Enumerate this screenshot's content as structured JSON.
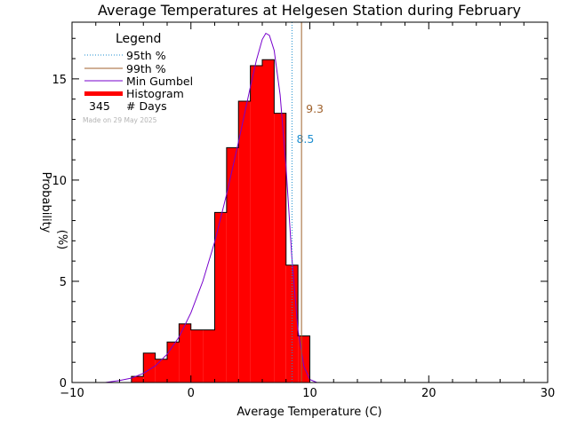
{
  "chart_data": {
    "type": "bar",
    "title": "Average Temperatures at Helgesen Station during February",
    "xlabel": "Average Temperature (C)",
    "ylabel_line1": "Probability",
    "ylabel_line2": "(%)",
    "xlim": [
      -10,
      30
    ],
    "ylim": [
      0,
      17.8
    ],
    "xticks": [
      -10,
      0,
      10,
      20,
      30
    ],
    "xtick_labels": [
      "−10",
      "0",
      "10",
      "20",
      "30"
    ],
    "yticks": [
      0,
      5,
      10,
      15
    ],
    "ytick_labels": [
      "0",
      "5",
      "10",
      "15"
    ],
    "grid": false,
    "legend": {
      "title": "Legend",
      "placement": "top-left",
      "entries": [
        {
          "label": "95th %",
          "style": "dotted",
          "color": "#1f8fd0"
        },
        {
          "label": "99th %",
          "style": "solid",
          "color": "#a0622d"
        },
        {
          "label": "Min Gumbel",
          "style": "solid",
          "color": "#7700cc"
        },
        {
          "label": "Histogram",
          "style": "thick",
          "color": "#ff0000"
        }
      ],
      "days_value": "345",
      "days_label": "# Days",
      "made_on": "Made on 29 May 2025"
    },
    "histogram": {
      "bin_width": 1,
      "bins": [
        {
          "x0": -5,
          "value": 0.3
        },
        {
          "x0": -4,
          "value": 1.45
        },
        {
          "x0": -3,
          "value": 1.15
        },
        {
          "x0": -2,
          "value": 2.0
        },
        {
          "x0": -1,
          "value": 2.9
        },
        {
          "x0": 0,
          "value": 2.6
        },
        {
          "x0": 1,
          "value": 2.6
        },
        {
          "x0": 2,
          "value": 8.4
        },
        {
          "x0": 3,
          "value": 11.6
        },
        {
          "x0": 4,
          "value": 13.9
        },
        {
          "x0": 5,
          "value": 15.65
        },
        {
          "x0": 6,
          "value": 15.95
        },
        {
          "x0": 7,
          "value": 13.3
        },
        {
          "x0": 8,
          "value": 5.8
        },
        {
          "x0": 9,
          "value": 2.3
        }
      ]
    },
    "gumbel_curve": [
      [
        -7.2,
        0.0
      ],
      [
        -6,
        0.1
      ],
      [
        -5,
        0.22
      ],
      [
        -4,
        0.45
      ],
      [
        -3,
        0.82
      ],
      [
        -2,
        1.4
      ],
      [
        -1,
        2.25
      ],
      [
        0,
        3.45
      ],
      [
        1,
        5.0
      ],
      [
        2,
        6.95
      ],
      [
        3,
        9.3
      ],
      [
        4,
        11.9
      ],
      [
        5,
        14.6
      ],
      [
        5.5,
        15.9
      ],
      [
        6,
        16.95
      ],
      [
        6.3,
        17.25
      ],
      [
        6.6,
        17.15
      ],
      [
        7,
        16.4
      ],
      [
        7.5,
        14.2
      ],
      [
        8,
        10.6
      ],
      [
        8.5,
        6.1
      ],
      [
        9,
        2.6
      ],
      [
        9.5,
        0.8
      ],
      [
        10,
        0.15
      ],
      [
        10.6,
        0.0
      ]
    ],
    "percentiles": [
      {
        "name": "95th %",
        "x": 8.5,
        "label": "8.5",
        "color": "#1f8fd0",
        "style": "dotted"
      },
      {
        "name": "99th %",
        "x": 9.3,
        "label": "9.3",
        "color": "#a0622d",
        "style": "solid"
      }
    ]
  }
}
